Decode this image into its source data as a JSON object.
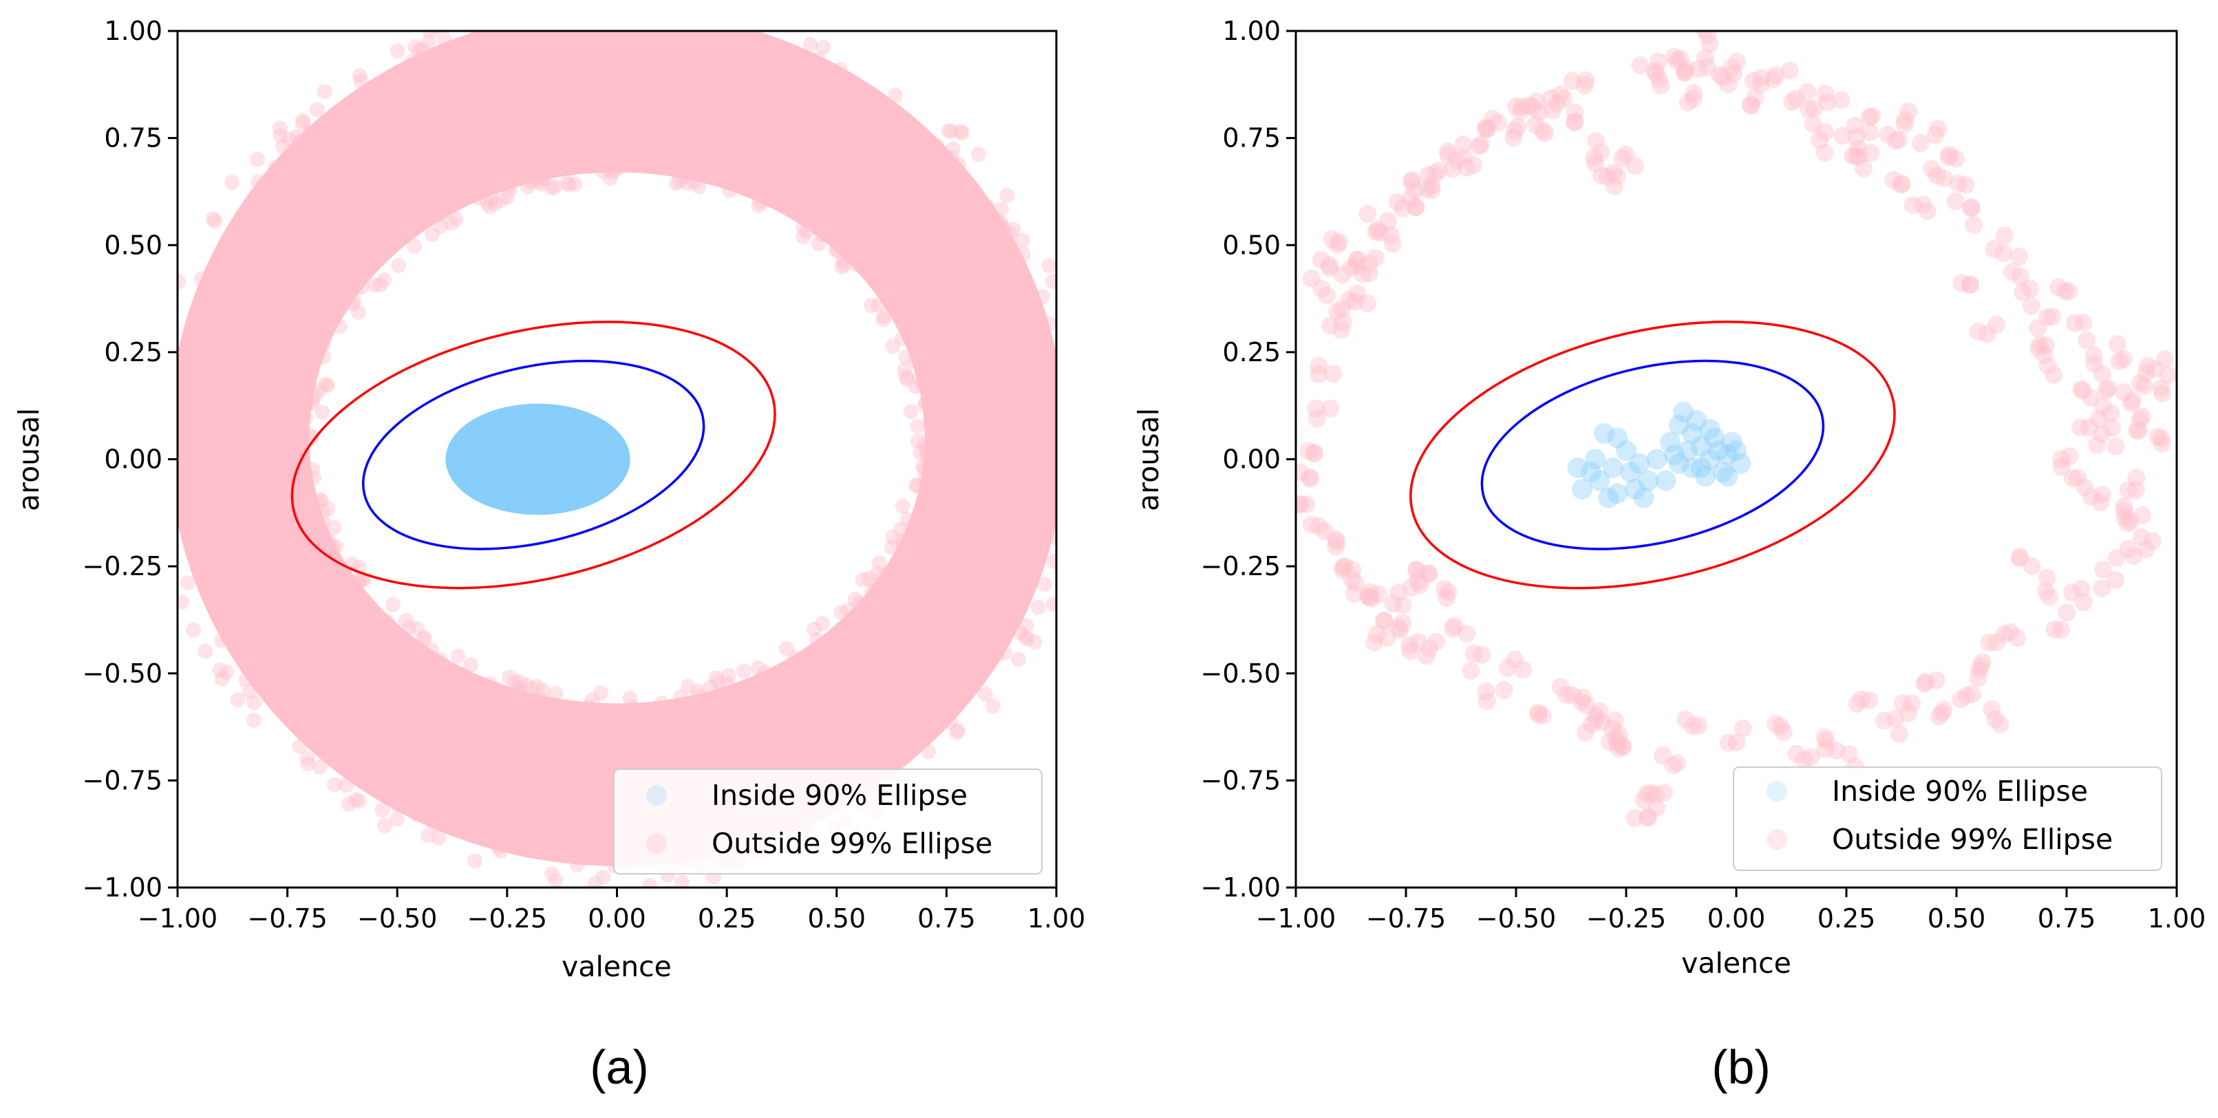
{
  "chart_data": [
    {
      "panel": "a",
      "type": "scatter",
      "caption": "(a)",
      "title": "",
      "xlabel": "valence",
      "ylabel": "arousal",
      "xlim": [
        -1.0,
        1.0
      ],
      "ylim": [
        -1.0,
        1.0
      ],
      "xticks": [
        "−1.00",
        "−0.75",
        "−0.50",
        "−0.25",
        "0.00",
        "0.25",
        "0.50",
        "0.75",
        "1.00"
      ],
      "yticks": [
        "1.00",
        "0.75",
        "0.50",
        "0.25",
        "0.00",
        "−0.25",
        "−0.50",
        "−0.75",
        "−1.00"
      ],
      "grid": false,
      "legend_position": "bottom-right",
      "series": [
        {
          "name": "Inside 90% Ellipse",
          "kind": "points",
          "color": "#87CEFA",
          "distribution": "dense filled region",
          "center": [
            -0.18,
            0.0
          ],
          "radius": [
            0.21,
            0.13
          ]
        },
        {
          "name": "Outside 99% Ellipse",
          "kind": "points",
          "color": "#FFC0CB",
          "distribution": "dense ring",
          "center": [
            0.0,
            0.05
          ],
          "inner_radius": [
            0.7,
            0.62
          ],
          "outer_radius": [
            1.02,
            1.0
          ]
        }
      ],
      "ellipses": [
        {
          "name": "90% Ellipse",
          "color": "#0000FF",
          "center": [
            -0.19,
            0.01
          ],
          "rx": 0.395,
          "ry": 0.205,
          "angle_deg": 13
        },
        {
          "name": "99% Ellipse",
          "color": "#FF0000",
          "center": [
            -0.19,
            0.01
          ],
          "rx": 0.56,
          "ry": 0.29,
          "angle_deg": 13
        }
      ]
    },
    {
      "panel": "b",
      "type": "scatter",
      "caption": "(b)",
      "title": "",
      "xlabel": "valence",
      "ylabel": "arousal",
      "xlim": [
        -1.0,
        1.0
      ],
      "ylim": [
        -1.0,
        1.0
      ],
      "xticks": [
        "−1.00",
        "−0.75",
        "−0.50",
        "−0.25",
        "0.00",
        "0.25",
        "0.50",
        "0.75",
        "1.00"
      ],
      "yticks": [
        "1.00",
        "0.75",
        "0.50",
        "0.25",
        "0.00",
        "−0.25",
        "−0.50",
        "−0.75",
        "−1.00"
      ],
      "grid": false,
      "legend_position": "bottom-right",
      "series": [
        {
          "name": "Inside 90% Ellipse",
          "kind": "points",
          "color": "#87CEFA",
          "points": [
            [
              -0.3,
              0.06
            ],
            [
              -0.27,
              0.05
            ],
            [
              -0.25,
              0.02
            ],
            [
              -0.28,
              -0.02
            ],
            [
              -0.31,
              -0.05
            ],
            [
              -0.27,
              -0.08
            ],
            [
              -0.23,
              -0.07
            ],
            [
              -0.2,
              -0.05
            ],
            [
              -0.22,
              -0.01
            ],
            [
              -0.18,
              0.0
            ],
            [
              -0.15,
              0.04
            ],
            [
              -0.13,
              0.08
            ],
            [
              -0.12,
              0.11
            ],
            [
              -0.1,
              0.06
            ],
            [
              -0.08,
              0.03
            ],
            [
              -0.06,
              0.0
            ],
            [
              -0.04,
              0.02
            ],
            [
              -0.02,
              0.01
            ],
            [
              0.0,
              0.02
            ],
            [
              0.01,
              -0.01
            ],
            [
              -0.03,
              -0.03
            ],
            [
              -0.07,
              -0.04
            ],
            [
              -0.1,
              -0.02
            ],
            [
              -0.13,
              -0.01
            ],
            [
              -0.16,
              -0.05
            ],
            [
              -0.11,
              0.02
            ],
            [
              -0.08,
              -0.02
            ],
            [
              -0.05,
              0.05
            ],
            [
              -0.09,
              0.09
            ],
            [
              -0.33,
              -0.03
            ],
            [
              -0.36,
              -0.02
            ],
            [
              -0.35,
              -0.07
            ],
            [
              -0.29,
              -0.09
            ],
            [
              -0.21,
              -0.09
            ],
            [
              -0.14,
              0.01
            ],
            [
              -0.06,
              0.07
            ],
            [
              -0.02,
              -0.04
            ],
            [
              -0.01,
              0.04
            ],
            [
              -0.24,
              -0.03
            ],
            [
              -0.32,
              0.0
            ]
          ]
        },
        {
          "name": "Outside 99% Ellipse",
          "kind": "points",
          "color": "#FFC0CB",
          "points": [
            [
              -0.95,
              0.4
            ],
            [
              -0.92,
              0.45
            ],
            [
              -0.9,
              0.5
            ],
            [
              -0.88,
              0.43
            ],
            [
              -0.85,
              0.48
            ],
            [
              -0.82,
              0.55
            ],
            [
              -0.8,
              0.52
            ],
            [
              -0.78,
              0.58
            ],
            [
              -0.75,
              0.6
            ],
            [
              -0.72,
              0.65
            ],
            [
              -0.7,
              0.62
            ],
            [
              -0.68,
              0.67
            ],
            [
              -0.65,
              0.7
            ],
            [
              -0.62,
              0.68
            ],
            [
              -0.6,
              0.72
            ],
            [
              -0.58,
              0.75
            ],
            [
              -0.55,
              0.78
            ],
            [
              -0.52,
              0.76
            ],
            [
              -0.5,
              0.8
            ],
            [
              -0.47,
              0.83
            ],
            [
              -0.45,
              0.78
            ],
            [
              -0.43,
              0.82
            ],
            [
              -0.4,
              0.85
            ],
            [
              -0.38,
              0.8
            ],
            [
              -0.36,
              0.87
            ],
            [
              -0.33,
              0.72
            ],
            [
              -0.3,
              0.68
            ],
            [
              -0.27,
              0.65
            ],
            [
              -0.24,
              0.7
            ],
            [
              -0.2,
              0.92
            ],
            [
              -0.18,
              0.88
            ],
            [
              -0.15,
              0.95
            ],
            [
              -0.12,
              0.9
            ],
            [
              -0.1,
              0.85
            ],
            [
              -0.08,
              0.93
            ],
            [
              -0.05,
              0.98
            ],
            [
              -0.03,
              0.88
            ],
            [
              0.0,
              0.92
            ],
            [
              0.02,
              0.82
            ],
            [
              0.05,
              0.87
            ],
            [
              0.1,
              0.9
            ],
            [
              0.14,
              0.85
            ],
            [
              0.18,
              0.8
            ],
            [
              0.22,
              0.83
            ],
            [
              0.25,
              0.77
            ],
            [
              0.28,
              0.72
            ],
            [
              0.32,
              0.78
            ],
            [
              0.35,
              0.74
            ],
            [
              0.4,
              0.8
            ],
            [
              0.44,
              0.75
            ],
            [
              0.48,
              0.7
            ],
            [
              0.5,
              0.62
            ],
            [
              0.55,
              0.57
            ],
            [
              0.6,
              0.5
            ],
            [
              0.63,
              0.45
            ],
            [
              0.66,
              0.38
            ],
            [
              0.7,
              0.33
            ],
            [
              0.74,
              0.4
            ],
            [
              0.78,
              0.3
            ],
            [
              0.82,
              0.22
            ],
            [
              0.86,
              0.17
            ],
            [
              0.9,
              0.12
            ],
            [
              0.93,
              0.08
            ],
            [
              0.95,
              0.03
            ],
            [
              0.92,
              0.2
            ],
            [
              0.88,
              0.25
            ],
            [
              0.84,
              0.1
            ],
            [
              0.8,
              0.05
            ],
            [
              0.76,
              0.0
            ],
            [
              0.78,
              -0.05
            ],
            [
              0.82,
              -0.08
            ],
            [
              0.86,
              -0.12
            ],
            [
              0.9,
              -0.15
            ],
            [
              0.93,
              -0.2
            ],
            [
              0.88,
              -0.22
            ],
            [
              0.84,
              -0.28
            ],
            [
              0.78,
              -0.32
            ],
            [
              0.74,
              -0.38
            ],
            [
              0.7,
              -0.3
            ],
            [
              0.65,
              -0.25
            ],
            [
              0.62,
              -0.4
            ],
            [
              0.58,
              -0.45
            ],
            [
              0.55,
              -0.5
            ],
            [
              0.6,
              -0.6
            ],
            [
              0.52,
              -0.55
            ],
            [
              0.48,
              -0.6
            ],
            [
              0.45,
              -0.52
            ],
            [
              0.4,
              -0.58
            ],
            [
              0.35,
              -0.62
            ],
            [
              0.28,
              -0.55
            ],
            [
              0.25,
              -0.7
            ],
            [
              0.2,
              -0.66
            ],
            [
              0.15,
              -0.68
            ],
            [
              0.1,
              -0.62
            ],
            [
              0.0,
              -0.65
            ],
            [
              -0.1,
              -0.62
            ],
            [
              -0.15,
              -0.7
            ],
            [
              -0.18,
              -0.78
            ],
            [
              -0.2,
              -0.8
            ],
            [
              -0.22,
              -0.82
            ],
            [
              -0.25,
              -0.65
            ],
            [
              -0.28,
              -0.66
            ],
            [
              -0.32,
              -0.62
            ],
            [
              -0.35,
              -0.58
            ],
            [
              -0.38,
              -0.55
            ],
            [
              -0.45,
              -0.6
            ],
            [
              -0.5,
              -0.48
            ],
            [
              -0.55,
              -0.55
            ],
            [
              -0.6,
              -0.47
            ],
            [
              -0.63,
              -0.4
            ],
            [
              -0.7,
              -0.42
            ],
            [
              -0.72,
              -0.45
            ],
            [
              -0.75,
              -0.38
            ],
            [
              -0.78,
              -0.36
            ],
            [
              -0.8,
              -0.42
            ],
            [
              -0.82,
              -0.32
            ],
            [
              -0.85,
              -0.3
            ],
            [
              -0.87,
              -0.27
            ],
            [
              -0.89,
              -0.25
            ],
            [
              -0.92,
              -0.2
            ],
            [
              -0.95,
              -0.15
            ],
            [
              -0.97,
              -0.1
            ],
            [
              -0.98,
              -0.05
            ],
            [
              -0.96,
              0.0
            ],
            [
              -0.94,
              0.1
            ],
            [
              -0.93,
              0.2
            ],
            [
              -0.91,
              0.3
            ],
            [
              -0.89,
              0.35
            ],
            [
              -0.86,
              0.38
            ],
            [
              -0.83,
              0.45
            ],
            [
              -0.76,
              -0.32
            ],
            [
              -0.74,
              -0.28
            ],
            [
              -0.71,
              -0.25
            ],
            [
              -0.66,
              -0.3
            ],
            [
              -0.3,
              -0.6
            ],
            [
              -0.26,
              -0.63
            ],
            [
              0.2,
              0.74
            ],
            [
              0.3,
              0.7
            ],
            [
              0.38,
              0.65
            ],
            [
              0.42,
              0.6
            ],
            [
              0.46,
              0.68
            ],
            [
              0.52,
              0.42
            ],
            [
              0.57,
              0.3
            ],
            [
              0.68,
              0.28
            ],
            [
              0.72,
              0.22
            ],
            [
              0.8,
              0.15
            ],
            [
              0.85,
              0.05
            ],
            [
              0.91,
              -0.05
            ],
            [
              0.95,
              0.15
            ],
            [
              0.97,
              0.22
            ]
          ]
        }
      ],
      "ellipses": [
        {
          "name": "90% Ellipse",
          "color": "#0000FF",
          "center": [
            -0.19,
            0.01
          ],
          "rx": 0.395,
          "ry": 0.205,
          "angle_deg": 13
        },
        {
          "name": "99% Ellipse",
          "color": "#FF0000",
          "center": [
            -0.19,
            0.01
          ],
          "rx": 0.56,
          "ry": 0.29,
          "angle_deg": 13
        }
      ]
    }
  ]
}
